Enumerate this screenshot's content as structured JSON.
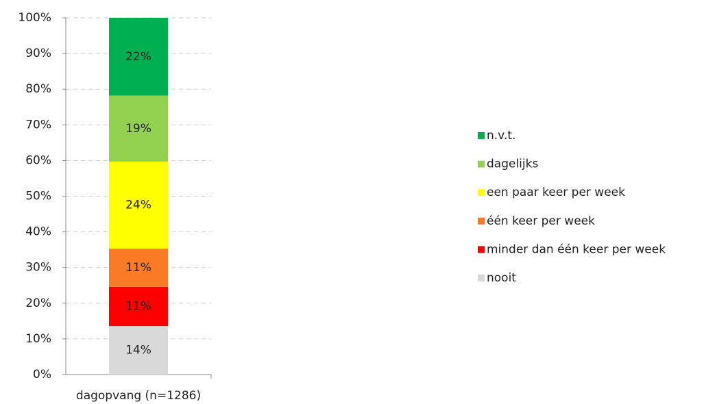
{
  "chart_data": {
    "type": "stacked_bar",
    "categories": [
      "dagopvang (n=1286)"
    ],
    "series": [
      {
        "name": "nooit",
        "color": "#d9d9d9",
        "values": [
          13.6
        ],
        "value_labels": [
          "14%"
        ]
      },
      {
        "name": "minder dan één keer per week",
        "color": "#ff0000",
        "values": [
          11.0
        ],
        "value_labels": [
          "11%"
        ]
      },
      {
        "name": "één keer per week",
        "color": "#fb7a26",
        "values": [
          10.7
        ],
        "value_labels": [
          "11%"
        ]
      },
      {
        "name": "een paar keer per week",
        "color": "#ffff00",
        "values": [
          24.4
        ],
        "value_labels": [
          "24%"
        ]
      },
      {
        "name": "dagelijks",
        "color": "#92d050",
        "values": [
          18.5
        ],
        "value_labels": [
          "19%"
        ]
      },
      {
        "name": "n.v.t.",
        "color": "#00b050",
        "values": [
          21.8
        ],
        "value_labels": [
          "22%"
        ]
      }
    ],
    "ylim": [
      0,
      100
    ],
    "yticks": [
      {
        "value": 0,
        "label": "0%"
      },
      {
        "value": 10,
        "label": "10%"
      },
      {
        "value": 20,
        "label": "20%"
      },
      {
        "value": 30,
        "label": "30%"
      },
      {
        "value": 40,
        "label": "40%"
      },
      {
        "value": 50,
        "label": "50%"
      },
      {
        "value": 60,
        "label": "60%"
      },
      {
        "value": 70,
        "label": "70%"
      },
      {
        "value": 80,
        "label": "80%"
      },
      {
        "value": 90,
        "label": "90%"
      },
      {
        "value": 100,
        "label": "100%"
      }
    ],
    "grid": true,
    "legend": "right"
  }
}
